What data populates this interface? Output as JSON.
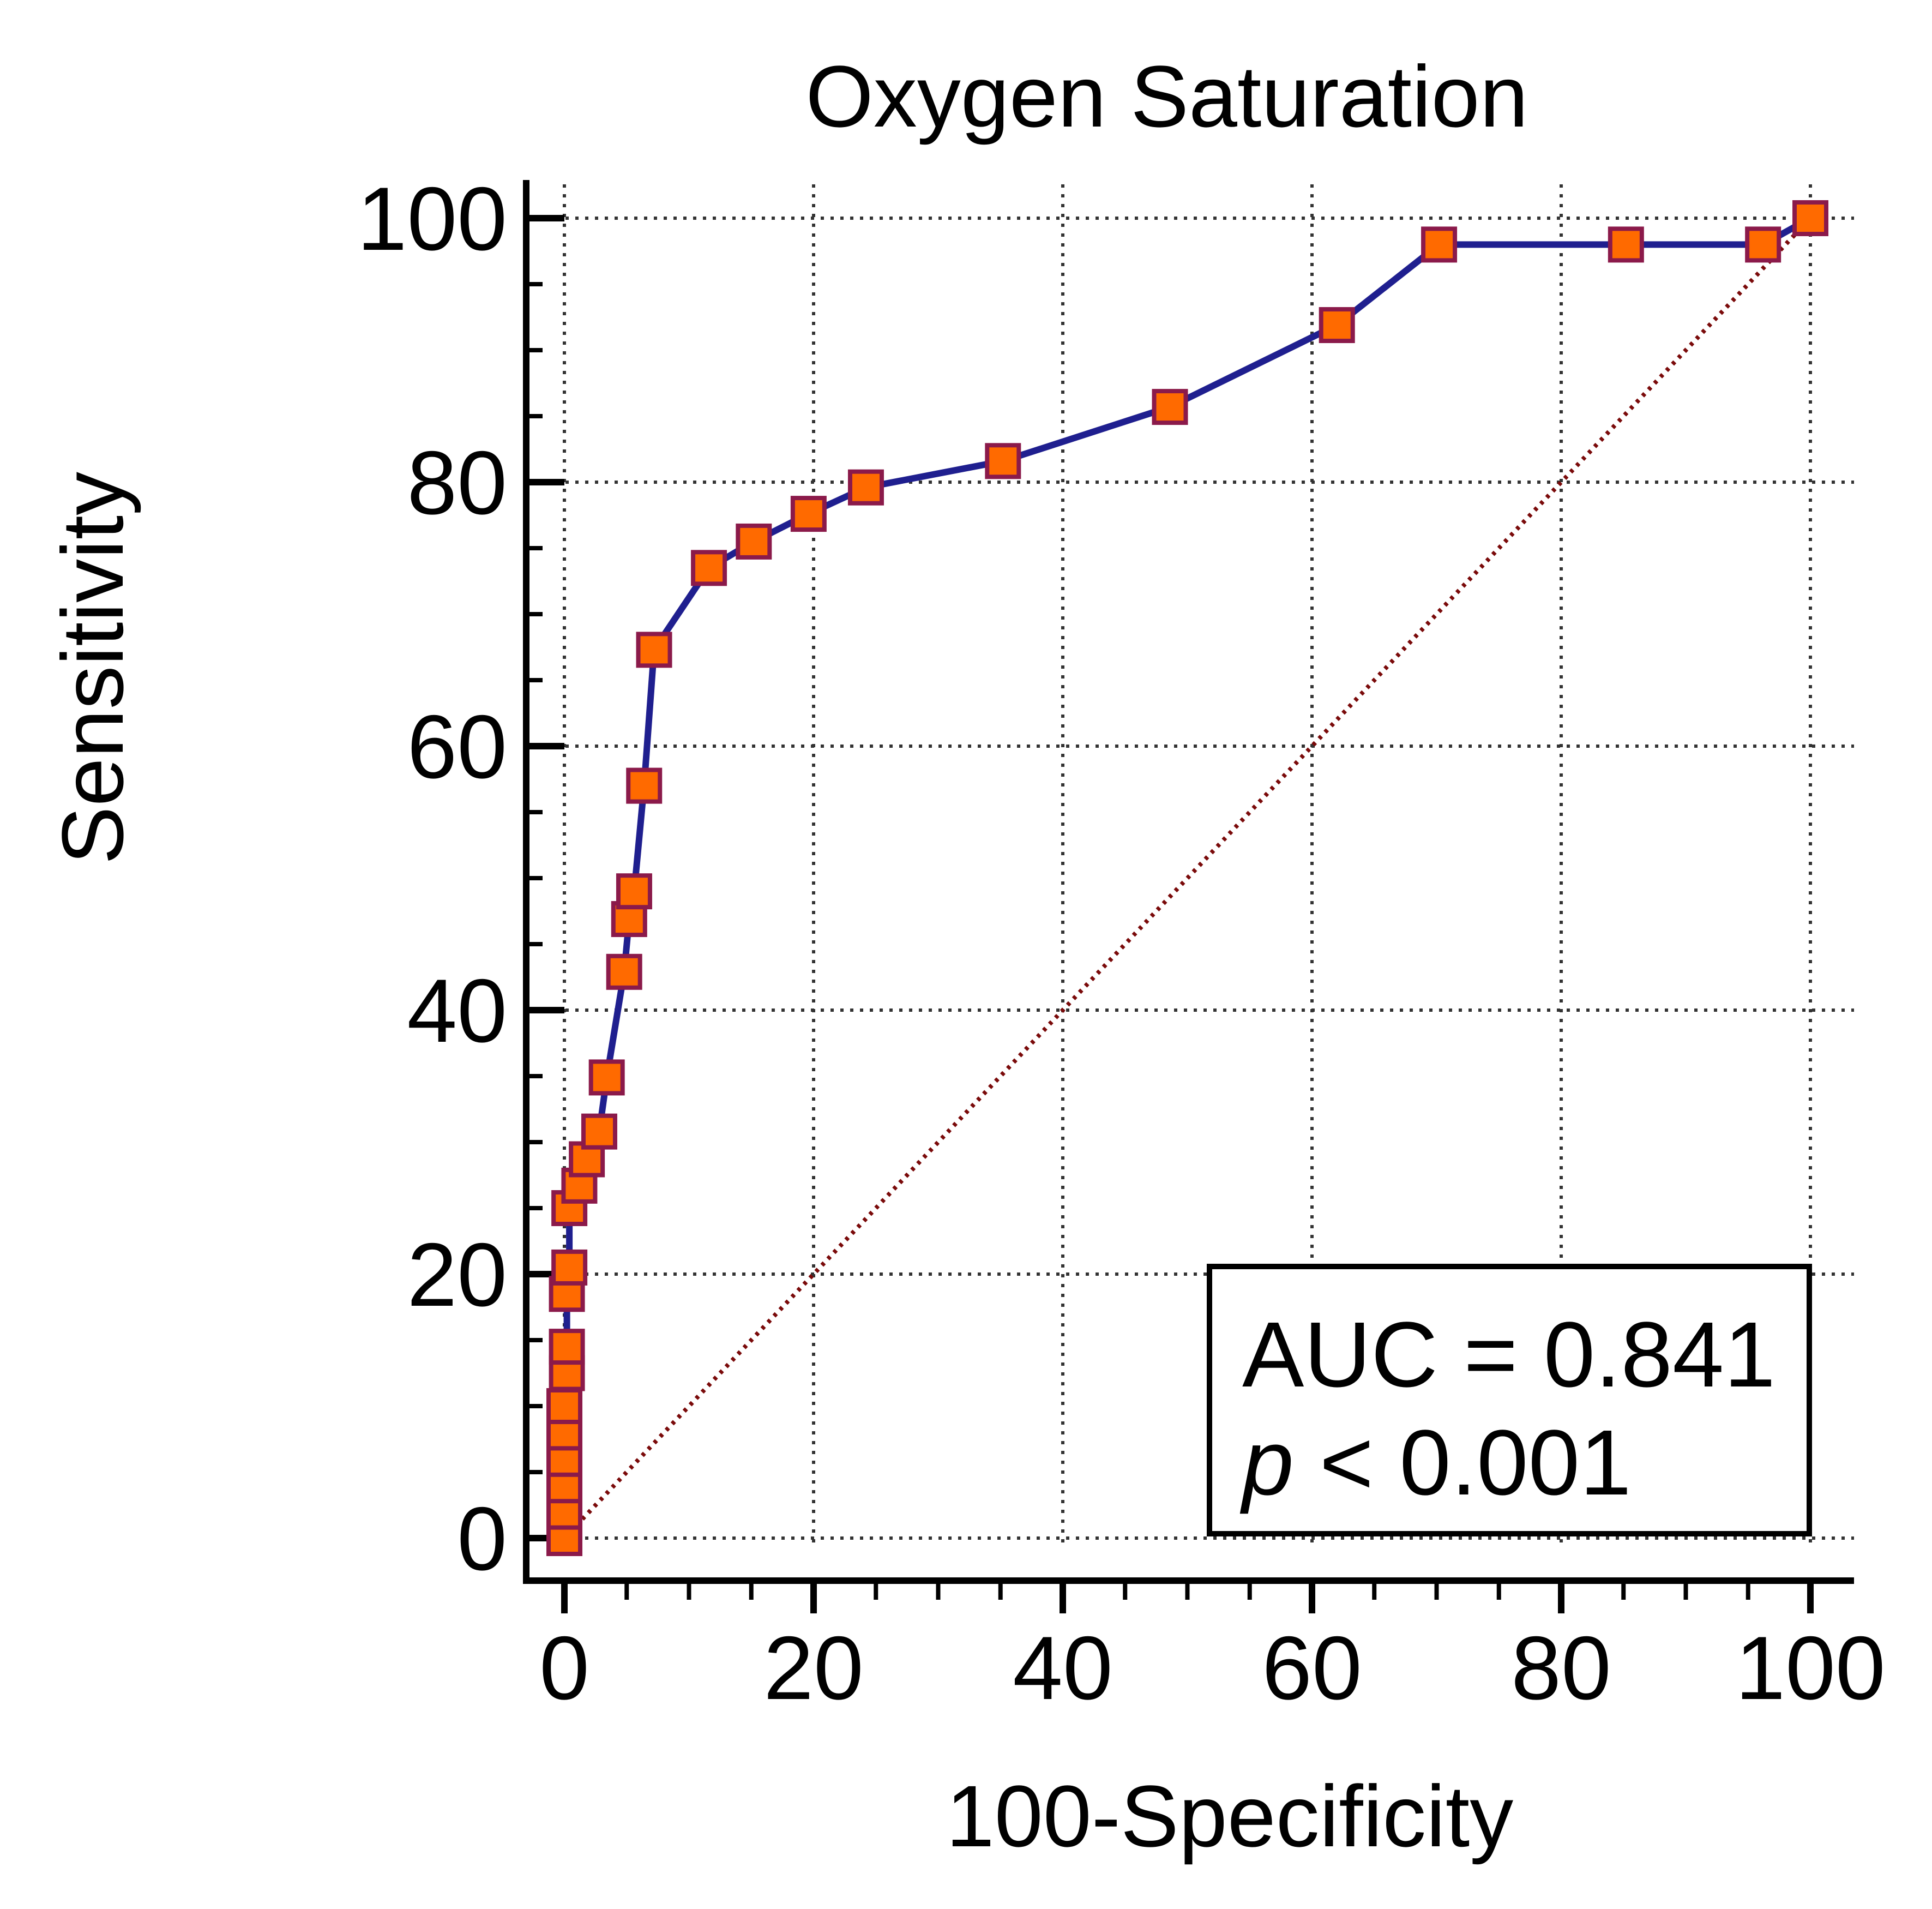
{
  "chart_data": {
    "type": "line",
    "title": "Oxygen Saturation",
    "xlabel": "100-Specificity",
    "ylabel": "Sensitivity",
    "xlim": [
      0,
      100
    ],
    "ylim": [
      0,
      100
    ],
    "x_ticks": [
      "0",
      "20",
      "40",
      "60",
      "80",
      "100"
    ],
    "y_ticks": [
      "0",
      "20",
      "40",
      "60",
      "80",
      "100"
    ],
    "grid": true,
    "series": [
      {
        "marker": "square",
        "color": "#1f1f8f",
        "marker_fill": "#ff6a00",
        "marker_edge": "#8b1a4a",
        "points": [
          [
            0,
            0
          ],
          [
            0,
            2
          ],
          [
            0,
            4
          ],
          [
            0,
            6
          ],
          [
            0,
            8
          ],
          [
            0,
            10
          ],
          [
            0.2,
            12.5
          ],
          [
            0.2,
            14.5
          ],
          [
            0.2,
            18.5
          ],
          [
            0.4,
            20.5
          ],
          [
            0.4,
            25
          ],
          [
            1.2,
            26.7
          ],
          [
            1.8,
            28.7
          ],
          [
            2.8,
            30.8
          ],
          [
            3.4,
            34.9
          ],
          [
            4.8,
            42.9
          ],
          [
            5.2,
            46.9
          ],
          [
            5.6,
            49
          ],
          [
            6.4,
            57
          ],
          [
            7.2,
            67.3
          ],
          [
            11.6,
            73.5
          ],
          [
            15.2,
            75.5
          ],
          [
            19.6,
            77.6
          ],
          [
            24.2,
            79.6
          ],
          [
            35.2,
            81.6
          ],
          [
            48.6,
            85.7
          ],
          [
            62,
            91.9
          ],
          [
            70.2,
            98
          ],
          [
            85.2,
            98
          ],
          [
            96.2,
            98
          ],
          [
            100,
            100
          ]
        ]
      }
    ],
    "reference_line": {
      "from": [
        0,
        0
      ],
      "to": [
        100,
        100
      ],
      "style": "dotted",
      "color": "#7a0a0a"
    },
    "annotation": {
      "auc_text": "AUC = 0.841",
      "p_symbol": "p",
      "p_text": " < 0.001",
      "placement": "bottom-right"
    }
  }
}
